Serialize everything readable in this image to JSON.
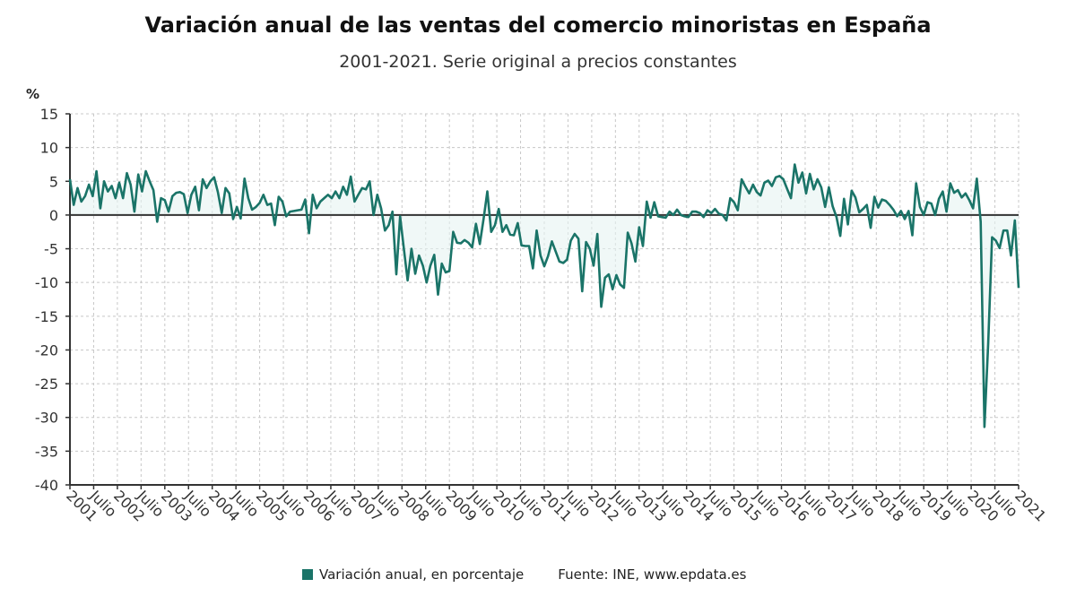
{
  "chart_data": {
    "type": "line",
    "title": "Variación anual de las ventas del comercio minoristas en España",
    "subtitle": "2001-2021. Serie original a precios constantes",
    "ylabel": "%",
    "xlabel": "",
    "ylim": [
      -40,
      15
    ],
    "yticks": [
      15,
      10,
      5,
      0,
      -5,
      -10,
      -15,
      -20,
      -25,
      -30,
      -35,
      -40
    ],
    "xrange": [
      "2001-01",
      "2021-01"
    ],
    "xtick_labels": [
      "2001",
      "Julio",
      "2002",
      "Julio",
      "2003",
      "Julio",
      "2004",
      "Julio",
      "2005",
      "Julio",
      "2006",
      "Julio",
      "2007",
      "Julio",
      "2008",
      "Julio",
      "2009",
      "Julio",
      "2010",
      "Julio",
      "2011",
      "Julio",
      "2012",
      "Julio",
      "2013",
      "Julio",
      "2014",
      "Julio",
      "2015",
      "Julio",
      "2016",
      "Julio",
      "2017",
      "Julio",
      "2018",
      "Julio",
      "2019",
      "Julio",
      "2020",
      "Julio",
      "2021"
    ],
    "grid": true,
    "legend_position": "bottom",
    "series": [
      {
        "name": "Variación anual, en porcentaje",
        "color": "#1a7468",
        "values": [
          5.3,
          1.5,
          4,
          2,
          2.8,
          4.5,
          2.8,
          6.5,
          1,
          5,
          3.5,
          4.3,
          2.5,
          4.8,
          2.5,
          6.2,
          4.5,
          0.5,
          6,
          3.5,
          6.5,
          5,
          3.7,
          -1,
          2.5,
          2.2,
          0.5,
          2.8,
          3.3,
          3.4,
          3.1,
          0.3,
          3,
          4.2,
          0.7,
          5.3,
          4,
          5,
          5.6,
          3.4,
          0.3,
          4,
          3.2,
          -0.6,
          1.2,
          -0.5,
          5.4,
          2.5,
          0.8,
          1.2,
          1.8,
          3,
          1.5,
          1.7,
          -1.5,
          2.7,
          2,
          -0.2,
          0.5,
          0.6,
          0.7,
          0.8,
          2.3,
          -2.7,
          3,
          1,
          2,
          2.5,
          3,
          2.5,
          3.5,
          2.5,
          4.2,
          3,
          5.7,
          2,
          3,
          4,
          3.8,
          5,
          0,
          3,
          1,
          -2.3,
          -1.5,
          0.5,
          -8.8,
          -0.2,
          -5,
          -9.7,
          -5,
          -8.7,
          -6,
          -7.5,
          -10,
          -7.5,
          -5.9,
          -11.8,
          -7.2,
          -8.5,
          -8.3,
          -2.5,
          -4.1,
          -4.2,
          -3.7,
          -4.1,
          -4.8,
          -1.3,
          -4.3,
          -0.6,
          3.5,
          -2.5,
          -1.5,
          0.9,
          -2.5,
          -1.5,
          -2.9,
          -3,
          -1.2,
          -4.5,
          -4.6,
          -4.6,
          -7.9,
          -2.3,
          -6,
          -7.6,
          -6.1,
          -3.9,
          -5.4,
          -6.9,
          -7.1,
          -6.6,
          -3.8,
          -2.8,
          -3.5,
          -11.3,
          -4,
          -5,
          -7.5,
          -2.8,
          -13.6,
          -9.3,
          -8.8,
          -11,
          -8.9,
          -10.3,
          -10.8,
          -2.6,
          -4.2,
          -6.9,
          -1.8,
          -4.6,
          2,
          -0.4,
          1.9,
          -0.2,
          -0.3,
          -0.4,
          0.5,
          0,
          0.8,
          0,
          -0.2,
          -0.3,
          0.5,
          0.5,
          0.3,
          -0.3,
          0.7,
          0.3,
          0.9,
          0.2,
          0,
          -0.8,
          2.5,
          1.9,
          0.7,
          5.3,
          4.2,
          3.2,
          4.5,
          3.4,
          2.9,
          4.8,
          5.1,
          4.3,
          5.6,
          5.8,
          5.3,
          3.9,
          2.5,
          7.5,
          4.8,
          6.3,
          3.2,
          6.1,
          3.8,
          5.3,
          4.1,
          1.2,
          4.1,
          1.3,
          -0.3,
          -3.1,
          2.4,
          -1.4,
          3.6,
          2.6,
          0.4,
          0.9,
          1.5,
          -1.9,
          2.7,
          1.1,
          2.3,
          2.1,
          1.5,
          0.8,
          -0.2,
          0.6,
          -0.6,
          0.6,
          -3,
          4.7,
          1.2,
          0,
          1.9,
          1.7,
          0,
          2.4,
          3.5,
          0.5,
          4.7,
          3.3,
          3.7,
          2.6,
          3.2,
          2.2,
          1,
          5.4,
          -1,
          -31.4,
          -19,
          -3.3,
          -3.8,
          -4.9,
          -2.3,
          -2.3,
          -6,
          -0.8,
          -10.8
        ]
      }
    ],
    "source": "Fuente: INE, www.epdata.es"
  }
}
